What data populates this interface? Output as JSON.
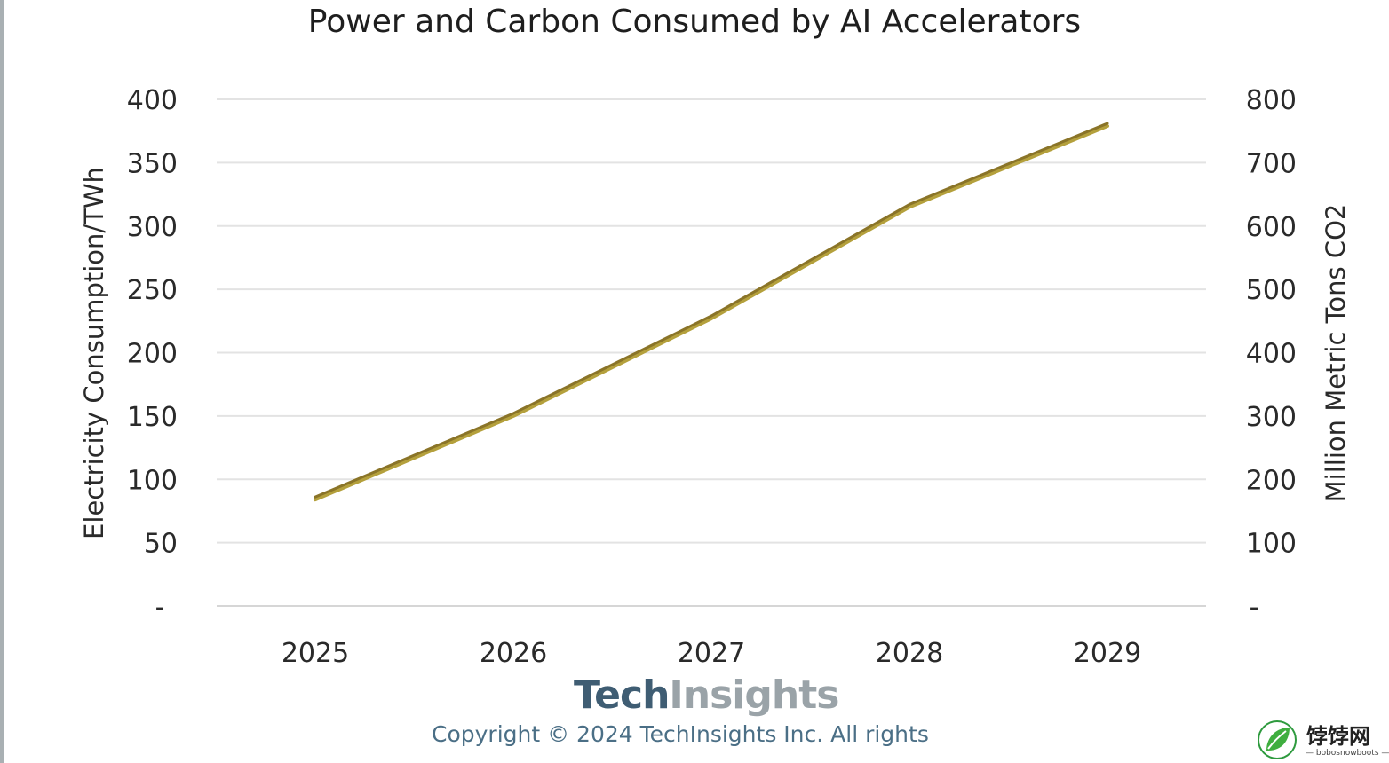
{
  "chart_data": {
    "type": "line",
    "title": "Power and Carbon Consumed by AI Accelerators",
    "categories": [
      "2025",
      "2026",
      "2027",
      "2028",
      "2029"
    ],
    "series": [
      {
        "name": "Electricity Consumption/TWh",
        "axis": "left",
        "values": [
          85,
          151,
          228,
          316,
          380
        ],
        "color": "#b4a03c"
      },
      {
        "name": "Million Metric Tons CO2",
        "axis": "right",
        "values": [
          170,
          302,
          456,
          632,
          760
        ],
        "color": "#8a7428"
      }
    ],
    "ylabel_left": "Electricity Consumption/TWh",
    "ylabel_right": "Million Metric Tons CO2",
    "ylim_left": [
      0,
      400
    ],
    "ylim_right": [
      0,
      800
    ],
    "yticks_left": [
      "-",
      "50",
      "100",
      "150",
      "200",
      "250",
      "300",
      "350",
      "400"
    ],
    "yticks_right": [
      "-",
      "100",
      "200",
      "300",
      "400",
      "500",
      "600",
      "700",
      "800"
    ],
    "grid": true
  },
  "branding": {
    "logo_tech": "Tech",
    "logo_insights": "Insights",
    "copyright": "Copyright © 2024 TechInsights Inc.  All rights"
  },
  "watermark": {
    "name": "饽饽网",
    "sub": "— bobosnowboots —"
  }
}
